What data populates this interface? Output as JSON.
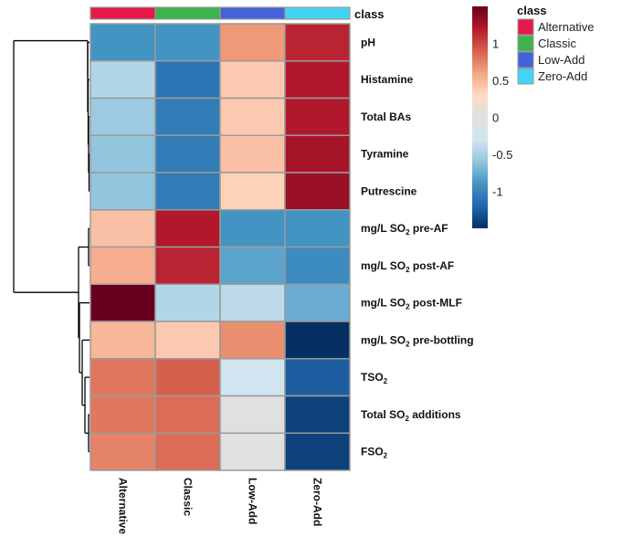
{
  "chart_data": {
    "type": "heatmap",
    "title": "",
    "columns": [
      "Alternative",
      "Classic",
      "Low-Add",
      "Zero-Add"
    ],
    "rows": [
      {
        "label": "pH",
        "label_parts": [
          {
            "t": "pH"
          }
        ],
        "values": [
          -0.9,
          -0.9,
          0.65,
          1.15
        ]
      },
      {
        "label": "Histamine",
        "label_parts": [
          {
            "t": "Histamine"
          }
        ],
        "values": [
          -0.45,
          -1.1,
          0.4,
          1.2
        ]
      },
      {
        "label": "Total BAs",
        "label_parts": [
          {
            "t": "Total BAs"
          }
        ],
        "values": [
          -0.55,
          -1.05,
          0.4,
          1.2
        ]
      },
      {
        "label": "Tyramine",
        "label_parts": [
          {
            "t": "Tyramine"
          }
        ],
        "values": [
          -0.6,
          -1.05,
          0.45,
          1.25
        ]
      },
      {
        "label": "Putrescine",
        "label_parts": [
          {
            "t": "Putrescine"
          }
        ],
        "values": [
          -0.6,
          -1.05,
          0.35,
          1.3
        ]
      },
      {
        "label": "mg/L SO2 pre-AF",
        "label_parts": [
          {
            "t": "mg/L SO"
          },
          {
            "t": "2",
            "sub": true
          },
          {
            "t": " pre-AF"
          }
        ],
        "values": [
          0.45,
          1.2,
          -0.9,
          -0.9
        ]
      },
      {
        "label": "mg/L SO2 post-AF",
        "label_parts": [
          {
            "t": "mg/L SO"
          },
          {
            "t": "2",
            "sub": true
          },
          {
            "t": " post-AF"
          }
        ],
        "values": [
          0.55,
          1.15,
          -0.8,
          -0.95
        ]
      },
      {
        "label": "mg/L SO2 post-MLF",
        "label_parts": [
          {
            "t": "mg/L SO"
          },
          {
            "t": "2",
            "sub": true
          },
          {
            "t": " post-MLF"
          }
        ],
        "values": [
          1.5,
          -0.45,
          -0.4,
          -0.75
        ]
      },
      {
        "label": "mg/L SO2 pre-bottling",
        "label_parts": [
          {
            "t": "mg/L SO"
          },
          {
            "t": "2",
            "sub": true
          },
          {
            "t": " pre-bottling"
          }
        ],
        "values": [
          0.5,
          0.4,
          0.7,
          -1.5
        ]
      },
      {
        "label": "TSO2",
        "label_parts": [
          {
            "t": "TSO"
          },
          {
            "t": "2",
            "sub": true
          }
        ],
        "values": [
          0.8,
          0.9,
          -0.3,
          -1.25
        ]
      },
      {
        "label": "Total SO2 additions",
        "label_parts": [
          {
            "t": "Total SO"
          },
          {
            "t": "2",
            "sub": true
          },
          {
            "t": " additions"
          }
        ],
        "values": [
          0.8,
          0.85,
          0.0,
          -1.4
        ]
      },
      {
        "label": "FSO2",
        "label_parts": [
          {
            "t": "FSO"
          },
          {
            "t": "2",
            "sub": true
          }
        ],
        "values": [
          0.75,
          0.85,
          0.0,
          -1.4
        ]
      }
    ],
    "annotation": {
      "name": "class",
      "levels": [
        {
          "label": "Alternative",
          "color": "#E6194B"
        },
        {
          "label": "Classic",
          "color": "#3CB44B"
        },
        {
          "label": "Low-Add",
          "color": "#4363D8"
        },
        {
          "label": "Zero-Add",
          "color": "#42D4F4"
        }
      ]
    },
    "color_scale": {
      "name": "RdBu (reversed)",
      "range": [
        -1.5,
        1.5
      ],
      "ticks": [
        1,
        0.5,
        0,
        -0.5,
        -1
      ],
      "tick_labels": [
        "1",
        "0.5",
        "0",
        "-0.5",
        "-1"
      ],
      "stops": [
        "#053061",
        "#2166AC",
        "#4393C3",
        "#92C5DE",
        "#D1E5F0",
        "#E0E0E0",
        "#FDDBC7",
        "#F4A582",
        "#D6604D",
        "#B2182B",
        "#67001F"
      ]
    },
    "row_dendrogram": {
      "comment": "hierarchical clustering of rows (leaf indices refer to rows array)",
      "tree": [
        [
          0,
          [
            [
              1,
              [
                2,
                [
                  3,
                  4
                ]
              ]
            ]
          ]
        ],
        [
          [
            5,
            6
          ],
          [
            7,
            [
              8,
              [
                9,
                [
                  10,
                  11
                ]
              ]
            ]
          ]
        ]
      ]
    },
    "legend": {
      "title": "class",
      "placement": "top-right"
    }
  }
}
